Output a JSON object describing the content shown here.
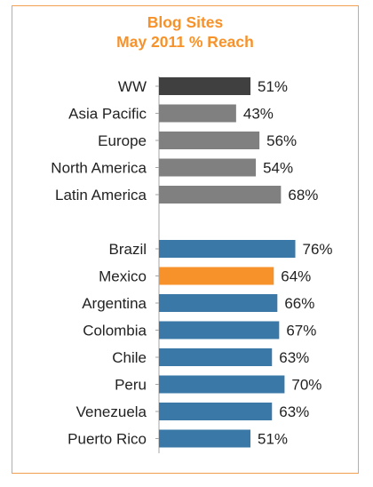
{
  "chart_data": {
    "type": "bar",
    "orientation": "horizontal",
    "title": "Blog Sites",
    "subtitle": "May 2011 % Reach",
    "xlim": [
      0,
      100
    ],
    "grid": false,
    "legend": "none",
    "colors": {
      "title": "#f7922a",
      "frame": "#f0a050",
      "ww": "#404040",
      "region": "#808080",
      "country": "#3a78a8",
      "highlight": "#f7922a"
    },
    "groups": [
      {
        "categories": [
          "WW",
          "Asia Pacific",
          "Europe",
          "North America",
          "Latin America"
        ],
        "values": [
          51,
          43,
          56,
          54,
          68
        ],
        "labels": [
          "51%",
          "43%",
          "56%",
          "54%",
          "68%"
        ],
        "colors": [
          "#404040",
          "#808080",
          "#808080",
          "#808080",
          "#808080"
        ]
      },
      {
        "categories": [
          "Brazil",
          "Mexico",
          "Argentina",
          "Colombia",
          "Chile",
          "Peru",
          "Venezuela",
          "Puerto Rico"
        ],
        "values": [
          76,
          64,
          66,
          67,
          63,
          70,
          63,
          51
        ],
        "labels": [
          "76%",
          "64%",
          "66%",
          "67%",
          "63%",
          "70%",
          "63%",
          "51%"
        ],
        "colors": [
          "#3a78a8",
          "#f7922a",
          "#3a78a8",
          "#3a78a8",
          "#3a78a8",
          "#3a78a8",
          "#3a78a8",
          "#3a78a8"
        ]
      }
    ]
  }
}
